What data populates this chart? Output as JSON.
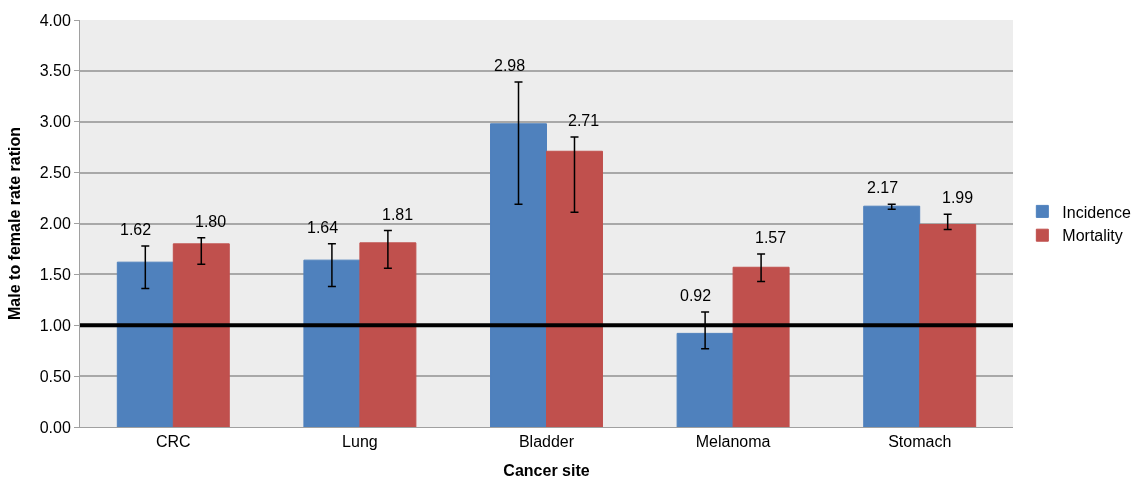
{
  "chart_data": {
    "type": "bar",
    "xlabel": "Cancer site",
    "ylabel": "Male to female rate ration",
    "categories": [
      "CRC",
      "Lung",
      "Bladder",
      "Melanoma",
      "Stomach"
    ],
    "series": [
      {
        "name": "Incidence",
        "color": "#4f81bd",
        "values": [
          1.62,
          1.64,
          2.98,
          0.92,
          2.17
        ],
        "value_labels": [
          "1.62",
          "1.64",
          "2.98",
          "0.92",
          "2.17"
        ],
        "errors": [
          [
            1.36,
            1.78
          ],
          [
            1.38,
            1.8
          ],
          [
            2.19,
            3.39
          ],
          [
            0.77,
            1.13
          ],
          [
            2.14,
            2.19
          ]
        ]
      },
      {
        "name": "Mortality",
        "color": "#c0504d",
        "values": [
          1.8,
          1.81,
          2.71,
          1.57,
          1.99
        ],
        "value_labels": [
          "1.80",
          "1.81",
          "2.71",
          "1.57",
          "1.99"
        ],
        "errors": [
          [
            1.6,
            1.86
          ],
          [
            1.56,
            1.93
          ],
          [
            2.11,
            2.85
          ],
          [
            1.43,
            1.7
          ],
          [
            1.94,
            2.09
          ]
        ]
      }
    ],
    "ylim": [
      0,
      4
    ],
    "yticks": [
      {
        "value": 0,
        "label": "0.00"
      },
      {
        "value": 0.5,
        "label": "0.50"
      },
      {
        "value": 1,
        "label": "1.00"
      },
      {
        "value": 1.5,
        "label": "1.50"
      },
      {
        "value": 2,
        "label": "2.00"
      },
      {
        "value": 2.5,
        "label": "2.50"
      },
      {
        "value": 3,
        "label": "3.00"
      },
      {
        "value": 3.5,
        "label": "3.50"
      },
      {
        "value": 4,
        "label": "4.00"
      }
    ],
    "ref_lines": [
      {
        "axis": "y",
        "value": 1,
        "color": "#000000"
      }
    ],
    "grid": "y",
    "legend": "right"
  }
}
